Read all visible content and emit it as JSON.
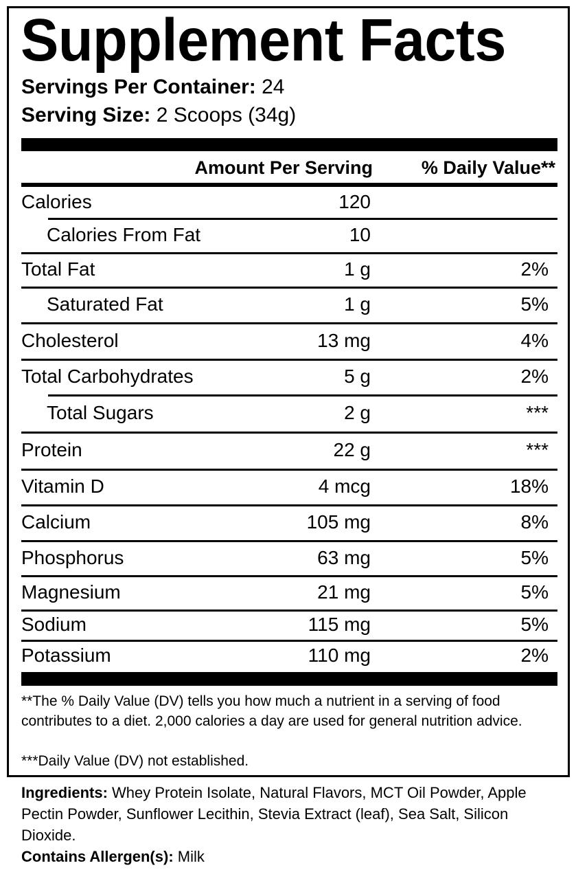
{
  "title": "Supplement Facts",
  "servings_per_container": {
    "label": "Servings Per Container:",
    "value": "24"
  },
  "serving_size": {
    "label": "Serving Size:",
    "value": "2 Scoops (34g)"
  },
  "columns": {
    "amount": "Amount Per Serving",
    "dv": "% Daily Value**"
  },
  "rows": [
    {
      "name": "Calories",
      "amount": "120",
      "dv": ""
    },
    {
      "name": "Calories From Fat",
      "amount": "10",
      "dv": "",
      "indent": true
    },
    {
      "name": "Total Fat",
      "amount": "1 g",
      "dv": "2%"
    },
    {
      "name": "Saturated Fat",
      "amount": "1 g",
      "dv": "5%",
      "indent": true
    },
    {
      "name": "Cholesterol",
      "amount": "13 mg",
      "dv": "4%"
    },
    {
      "name": "Total Carbohydrates",
      "amount": "5 g",
      "dv": "2%"
    },
    {
      "name": "Total Sugars",
      "amount": "2 g",
      "dv": "***",
      "indent": true
    },
    {
      "name": "Protein",
      "amount": "22 g",
      "dv": "***"
    },
    {
      "name": "Vitamin D",
      "amount": "4 mcg",
      "dv": "18%"
    },
    {
      "name": "Calcium",
      "amount": "105 mg",
      "dv": "8%"
    },
    {
      "name": "Phosphorus",
      "amount": "63 mg",
      "dv": "5%"
    },
    {
      "name": "Magnesium",
      "amount": "21 mg",
      "dv": "5%"
    },
    {
      "name": "Sodium",
      "amount": "115 mg",
      "dv": "5%"
    },
    {
      "name": "Potassium",
      "amount": "110 mg",
      "dv": "2%"
    }
  ],
  "footnotes": {
    "dv_note": "**The % Daily Value (DV) tells you how much a nutrient in a serving of food contributes to a diet. 2,000 calories a day are used for general nutrition advice.",
    "not_established": "***Daily Value (DV) not established."
  },
  "ingredients": {
    "label": "Ingredients:",
    "text": " Whey Protein Isolate, Natural Flavors, MCT Oil Powder, Apple Pectin Powder, Sunflower Lecithin, Stevia Extract (leaf), Sea Salt, Silicon Dioxide."
  },
  "allergens": {
    "label": "Contains Allergen(s):",
    "text": " Milk"
  }
}
